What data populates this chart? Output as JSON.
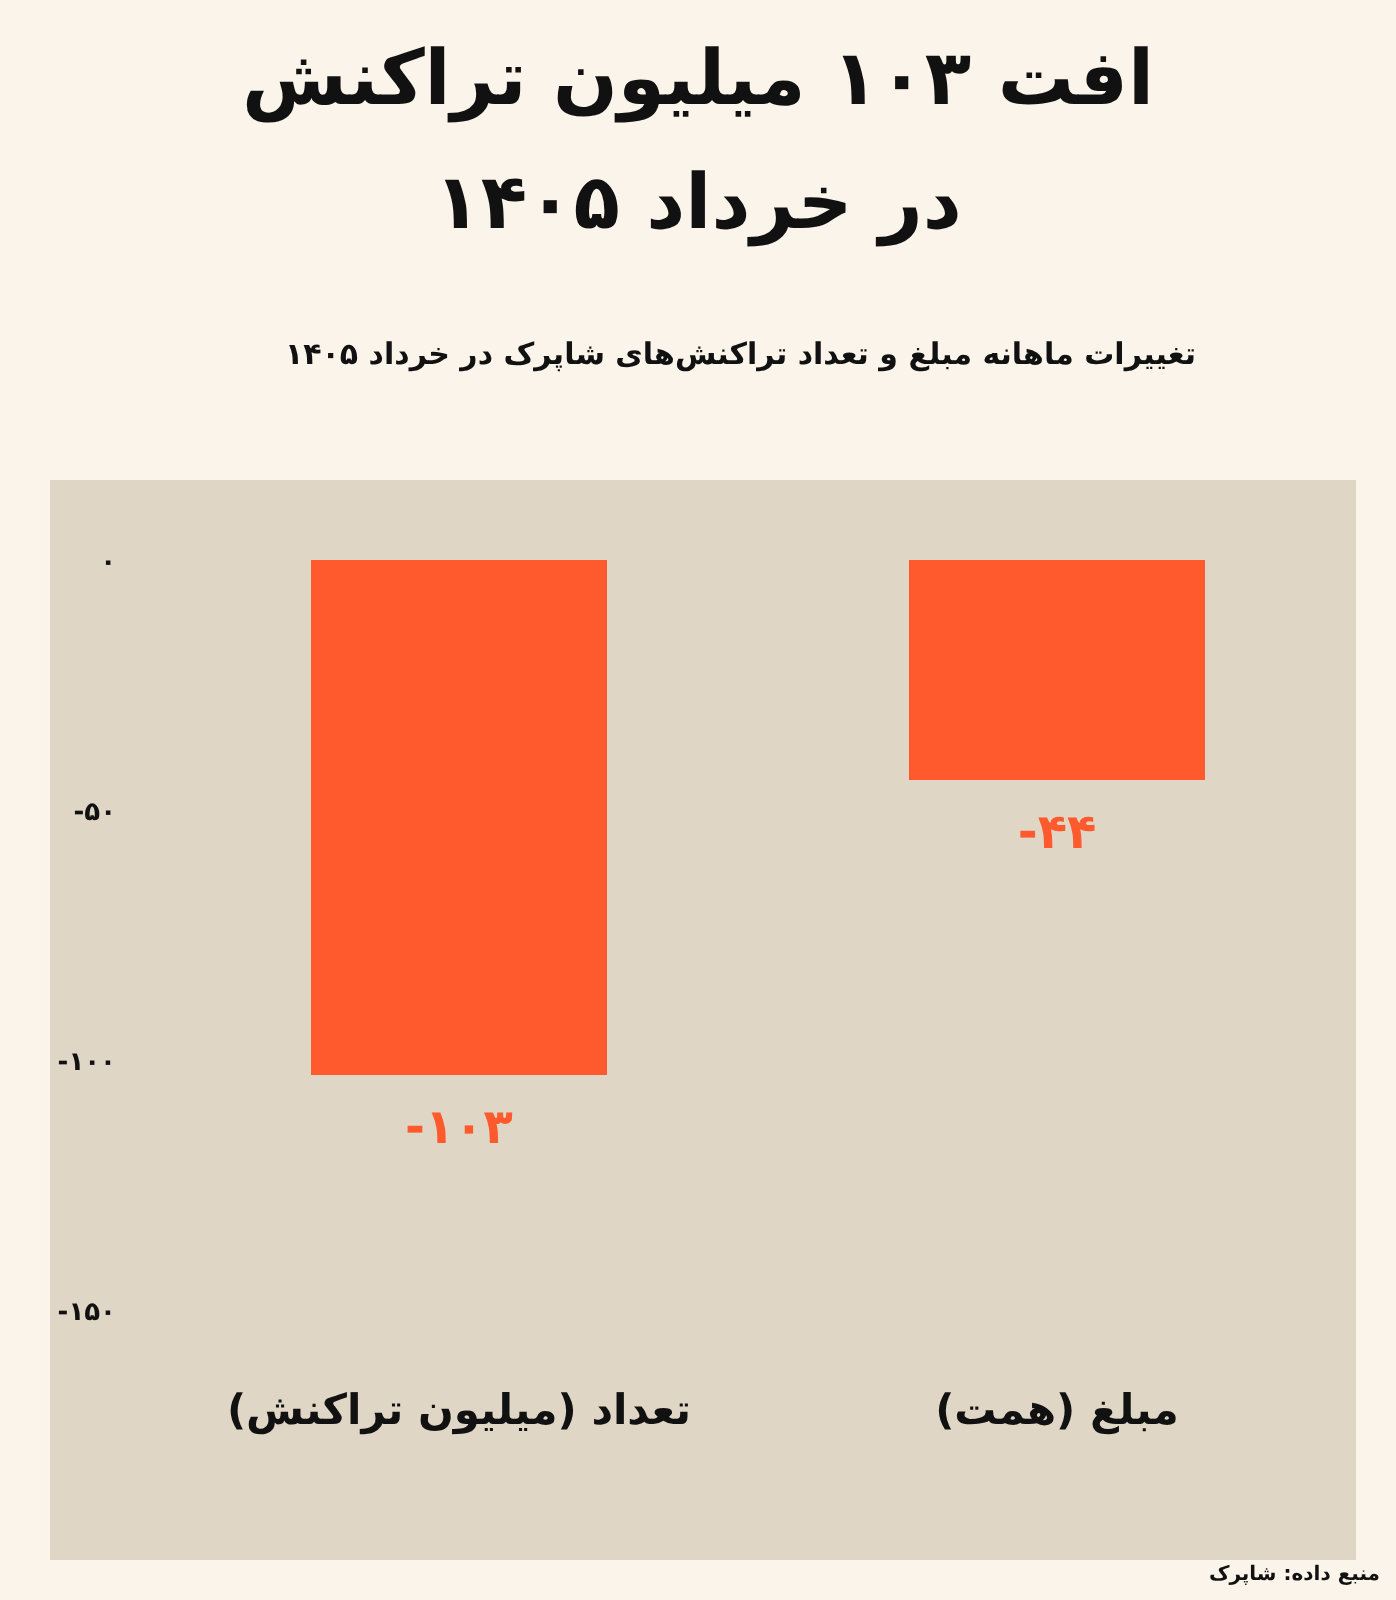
{
  "chart_data": {
    "type": "bar",
    "title": "افت ۱۰۳ میلیون تراکنش در خرداد ۱۴۰۵",
    "subtitle": "تغییرات ماهانه مبلغ و تعداد تراکنش‌های شاپرک در خرداد ۱۴۰۵",
    "categories": [
      "تعداد (میلیون تراکنش)",
      "مبلغ (همت)"
    ],
    "values": [
      -103,
      -44
    ],
    "color": "#fe5a2d",
    "value_labels": [
      "-۱۰۳",
      "-۴۴"
    ],
    "ylim": [
      -200,
      16
    ],
    "yticks": [
      {
        "value": 0,
        "label": "۰"
      },
      {
        "value": -50,
        "label": "-۵۰"
      },
      {
        "value": -100,
        "label": "-۱۰۰"
      },
      {
        "value": -150,
        "label": "-۱۵۰"
      }
    ],
    "annotations": [
      "منبع داده: شاپرک"
    ]
  }
}
